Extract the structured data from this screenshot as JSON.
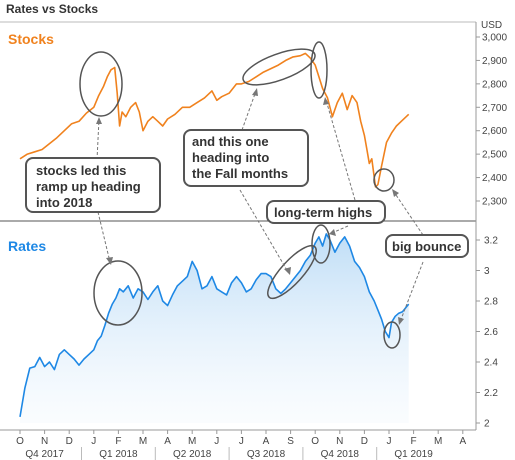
{
  "chart_data": {
    "type": "line",
    "title": "Rates vs Stocks",
    "months": [
      "O",
      "N",
      "D",
      "J",
      "F",
      "M",
      "A",
      "M",
      "J",
      "J",
      "A",
      "S",
      "O",
      "N",
      "D",
      "J",
      "F",
      "M",
      "A"
    ],
    "quarters": [
      "Q4 2017",
      "Q1 2018",
      "Q2 2018",
      "Q3 2018",
      "Q4 2018",
      "Q1 2019"
    ],
    "panels": [
      {
        "name": "Stocks",
        "unit": "USD",
        "ylim": [
          2200,
          3000
        ],
        "yticks": [
          "2,300",
          "2,400",
          "2,500",
          "2,600",
          "2,700",
          "2,800",
          "2,900",
          "3,000"
        ],
        "ytick_values": [
          2300,
          2400,
          2500,
          2600,
          2700,
          2800,
          2900,
          3000
        ],
        "color": "#f0821e",
        "series": [
          [
            0,
            2480
          ],
          [
            0.3,
            2500
          ],
          [
            0.6,
            2510
          ],
          [
            0.9,
            2520
          ],
          [
            1.2,
            2545
          ],
          [
            1.5,
            2570
          ],
          [
            1.8,
            2600
          ],
          [
            2.1,
            2630
          ],
          [
            2.4,
            2640
          ],
          [
            2.7,
            2675
          ],
          [
            3.0,
            2700
          ],
          [
            3.2,
            2750
          ],
          [
            3.4,
            2790
          ],
          [
            3.55,
            2830
          ],
          [
            3.7,
            2860
          ],
          [
            3.85,
            2870
          ],
          [
            3.95,
            2760
          ],
          [
            4.05,
            2620
          ],
          [
            4.15,
            2680
          ],
          [
            4.3,
            2660
          ],
          [
            4.5,
            2700
          ],
          [
            4.7,
            2720
          ],
          [
            4.85,
            2680
          ],
          [
            5.0,
            2600
          ],
          [
            5.2,
            2640
          ],
          [
            5.4,
            2660
          ],
          [
            5.6,
            2640
          ],
          [
            5.8,
            2620
          ],
          [
            6.0,
            2650
          ],
          [
            6.3,
            2670
          ],
          [
            6.6,
            2700
          ],
          [
            6.9,
            2700
          ],
          [
            7.2,
            2720
          ],
          [
            7.5,
            2740
          ],
          [
            7.8,
            2770
          ],
          [
            8.0,
            2730
          ],
          [
            8.2,
            2745
          ],
          [
            8.5,
            2760
          ],
          [
            8.8,
            2800
          ],
          [
            9.0,
            2800
          ],
          [
            9.3,
            2810
          ],
          [
            9.6,
            2830
          ],
          [
            9.9,
            2850
          ],
          [
            10.2,
            2865
          ],
          [
            10.5,
            2880
          ],
          [
            10.8,
            2900
          ],
          [
            11.1,
            2915
          ],
          [
            11.4,
            2920
          ],
          [
            11.6,
            2930
          ],
          [
            11.8,
            2910
          ],
          [
            12.0,
            2880
          ],
          [
            12.15,
            2830
          ],
          [
            12.3,
            2780
          ],
          [
            12.5,
            2740
          ],
          [
            12.7,
            2660
          ],
          [
            12.9,
            2720
          ],
          [
            13.1,
            2760
          ],
          [
            13.3,
            2690
          ],
          [
            13.5,
            2750
          ],
          [
            13.7,
            2720
          ],
          [
            13.85,
            2640
          ],
          [
            14.0,
            2580
          ],
          [
            14.1,
            2520
          ],
          [
            14.2,
            2460
          ],
          [
            14.3,
            2480
          ],
          [
            14.45,
            2360
          ],
          [
            14.55,
            2370
          ],
          [
            14.7,
            2450
          ],
          [
            14.9,
            2550
          ],
          [
            15.1,
            2590
          ],
          [
            15.3,
            2620
          ],
          [
            15.5,
            2640
          ],
          [
            15.7,
            2660
          ],
          [
            15.8,
            2670
          ]
        ]
      },
      {
        "name": "Rates",
        "ylim": [
          2.0,
          3.3
        ],
        "yticks": [
          "2",
          "2.2",
          "2.4",
          "2.6",
          "2.8",
          "3",
          "3.2"
        ],
        "ytick_values": [
          2.0,
          2.2,
          2.4,
          2.6,
          2.8,
          3.0,
          3.2
        ],
        "color": "#1e88e5",
        "series": [
          [
            0,
            2.04
          ],
          [
            0.2,
            2.23
          ],
          [
            0.4,
            2.36
          ],
          [
            0.6,
            2.37
          ],
          [
            0.8,
            2.43
          ],
          [
            1.0,
            2.37
          ],
          [
            1.2,
            2.4
          ],
          [
            1.4,
            2.35
          ],
          [
            1.6,
            2.45
          ],
          [
            1.8,
            2.48
          ],
          [
            2.0,
            2.45
          ],
          [
            2.2,
            2.42
          ],
          [
            2.4,
            2.38
          ],
          [
            2.6,
            2.42
          ],
          [
            2.8,
            2.45
          ],
          [
            3.0,
            2.48
          ],
          [
            3.15,
            2.54
          ],
          [
            3.3,
            2.57
          ],
          [
            3.45,
            2.64
          ],
          [
            3.6,
            2.72
          ],
          [
            3.75,
            2.78
          ],
          [
            3.9,
            2.82
          ],
          [
            4.05,
            2.88
          ],
          [
            4.2,
            2.86
          ],
          [
            4.4,
            2.9
          ],
          [
            4.6,
            2.82
          ],
          [
            4.8,
            2.88
          ],
          [
            5.0,
            2.86
          ],
          [
            5.2,
            2.81
          ],
          [
            5.4,
            2.86
          ],
          [
            5.6,
            2.9
          ],
          [
            5.8,
            2.8
          ],
          [
            6.0,
            2.77
          ],
          [
            6.2,
            2.84
          ],
          [
            6.4,
            2.9
          ],
          [
            6.6,
            2.93
          ],
          [
            6.8,
            2.96
          ],
          [
            7.0,
            3.06
          ],
          [
            7.2,
            3.0
          ],
          [
            7.4,
            2.88
          ],
          [
            7.6,
            2.9
          ],
          [
            7.8,
            2.96
          ],
          [
            8.0,
            2.88
          ],
          [
            8.2,
            2.86
          ],
          [
            8.4,
            2.84
          ],
          [
            8.6,
            2.92
          ],
          [
            8.8,
            2.96
          ],
          [
            9.0,
            2.92
          ],
          [
            9.2,
            2.86
          ],
          [
            9.4,
            2.88
          ],
          [
            9.6,
            2.94
          ],
          [
            9.8,
            2.98
          ],
          [
            10.0,
            2.98
          ],
          [
            10.2,
            2.96
          ],
          [
            10.4,
            2.88
          ],
          [
            10.6,
            2.85
          ],
          [
            10.8,
            2.88
          ],
          [
            11.0,
            2.92
          ],
          [
            11.2,
            2.96
          ],
          [
            11.4,
            3.0
          ],
          [
            11.6,
            3.06
          ],
          [
            11.8,
            3.1
          ],
          [
            12.0,
            3.18
          ],
          [
            12.15,
            3.22
          ],
          [
            12.3,
            3.16
          ],
          [
            12.45,
            3.24
          ],
          [
            12.6,
            3.2
          ],
          [
            12.8,
            3.12
          ],
          [
            13.0,
            3.18
          ],
          [
            13.2,
            3.22
          ],
          [
            13.4,
            3.16
          ],
          [
            13.6,
            3.06
          ],
          [
            13.8,
            3.02
          ],
          [
            14.0,
            2.96
          ],
          [
            14.2,
            2.86
          ],
          [
            14.4,
            2.8
          ],
          [
            14.55,
            2.74
          ],
          [
            14.7,
            2.68
          ],
          [
            14.85,
            2.6
          ],
          [
            15.0,
            2.56
          ],
          [
            15.1,
            2.66
          ],
          [
            15.25,
            2.7
          ],
          [
            15.4,
            2.72
          ],
          [
            15.55,
            2.73
          ],
          [
            15.7,
            2.76
          ],
          [
            15.8,
            2.78
          ]
        ]
      }
    ],
    "annotations": [
      {
        "lines": [
          "stocks led this",
          "ramp up heading",
          "into 2018"
        ]
      },
      {
        "lines": [
          "and this one",
          "heading into",
          "the Fall months"
        ]
      },
      {
        "lines": [
          "long-term highs"
        ]
      },
      {
        "lines": [
          "big bounce"
        ]
      }
    ]
  }
}
